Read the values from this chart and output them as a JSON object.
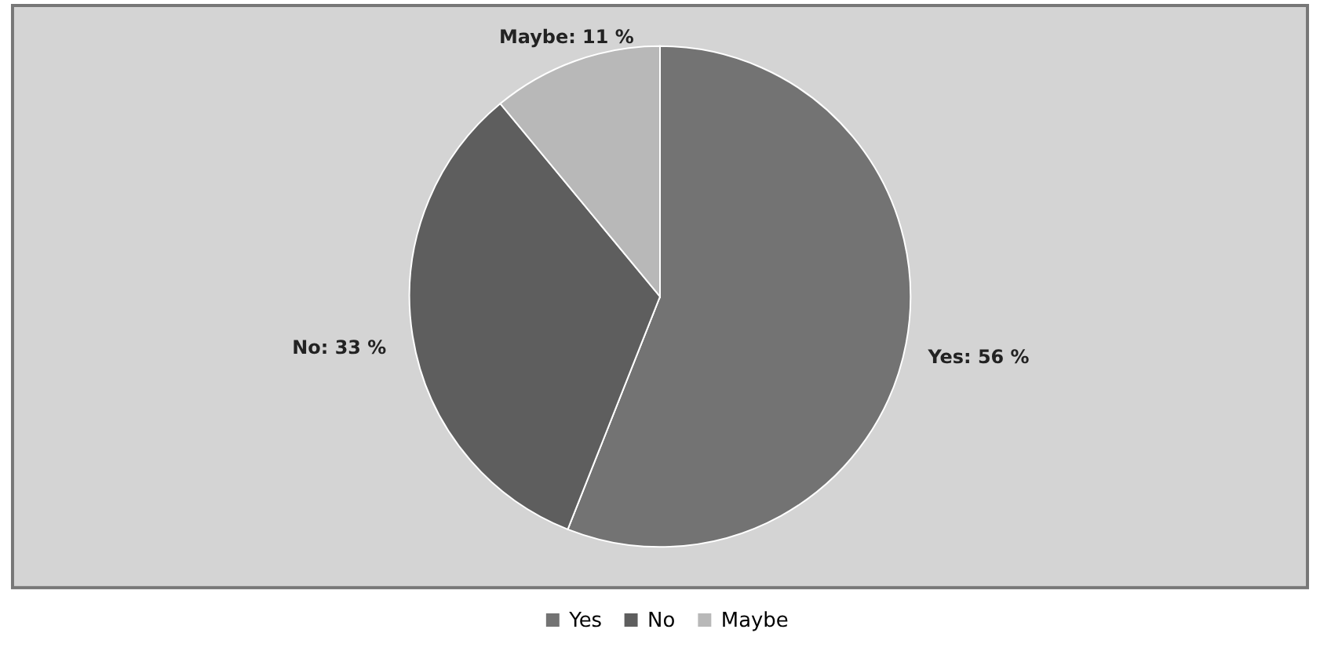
{
  "chart_data": {
    "type": "pie",
    "categories": [
      "Yes",
      "No",
      "Maybe"
    ],
    "values": [
      56,
      33,
      11
    ],
    "colors": [
      "#737373",
      "#5e5e5e",
      "#b8b8b8"
    ],
    "value_labels": [
      "Yes: 56 %",
      "No: 33 %",
      "Maybe: 11 %"
    ],
    "legend": "bottom"
  }
}
